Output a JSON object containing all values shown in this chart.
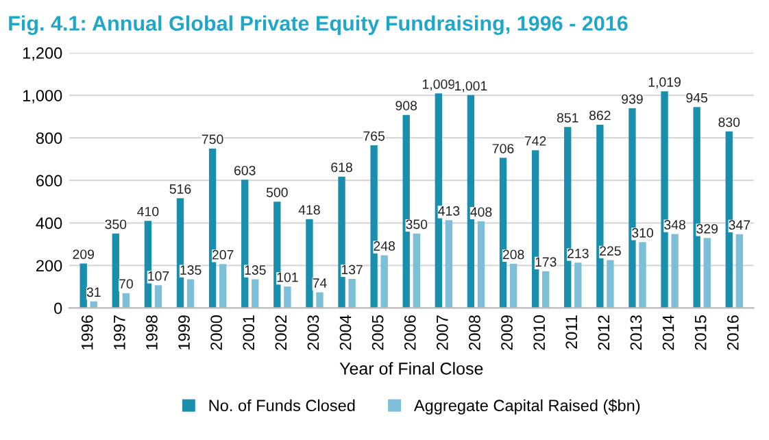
{
  "chart_data": {
    "type": "bar",
    "title": "Fig. 4.1: Annual Global Private Equity Fundraising, 1996 - 2016",
    "xlabel": "Year of Final Close",
    "categories": [
      "1996",
      "1997",
      "1998",
      "1999",
      "2000",
      "2001",
      "2002",
      "2003",
      "2004",
      "2005",
      "2006",
      "2007",
      "2008",
      "2009",
      "2010",
      "2011",
      "2012",
      "2013",
      "2014",
      "2015",
      "2016"
    ],
    "series": [
      {
        "name": "No. of Funds Closed",
        "color": "#1a8fad",
        "values": [
          209,
          350,
          410,
          516,
          750,
          603,
          500,
          418,
          618,
          765,
          908,
          1009,
          1001,
          706,
          742,
          851,
          862,
          939,
          1019,
          945,
          830
        ],
        "value_labels": [
          "209",
          "350",
          "410",
          "516",
          "750",
          "603",
          "500",
          "418",
          "618",
          "765",
          "908",
          "1,009",
          "1,001",
          "706",
          "742",
          "851",
          "862",
          "939",
          "1,019",
          "945",
          "830"
        ]
      },
      {
        "name": "Aggregate Capital Raised ($bn)",
        "color": "#7dbfd6",
        "values": [
          31,
          70,
          107,
          135,
          207,
          135,
          101,
          74,
          137,
          248,
          350,
          413,
          408,
          208,
          173,
          213,
          225,
          310,
          348,
          329,
          347
        ],
        "value_labels": [
          "31",
          "70",
          "107",
          "135",
          "207",
          "135",
          "101",
          "74",
          "137",
          "248",
          "350",
          "413",
          "408",
          "208",
          "173",
          "213",
          "225",
          "310",
          "348",
          "329",
          "347"
        ]
      }
    ],
    "ylim": [
      0,
      1200
    ],
    "yticks": [
      0,
      {
        "value": 200,
        "label": "200"
      },
      {
        "value": 400,
        "label": "400"
      },
      {
        "value": 600,
        "label": "600"
      },
      {
        "value": 800,
        "label": "800"
      },
      {
        "value": 1000,
        "label": "1,000"
      },
      {
        "value": 1200,
        "label": "1,200"
      }
    ],
    "grid": "y",
    "legend": "bottom"
  }
}
